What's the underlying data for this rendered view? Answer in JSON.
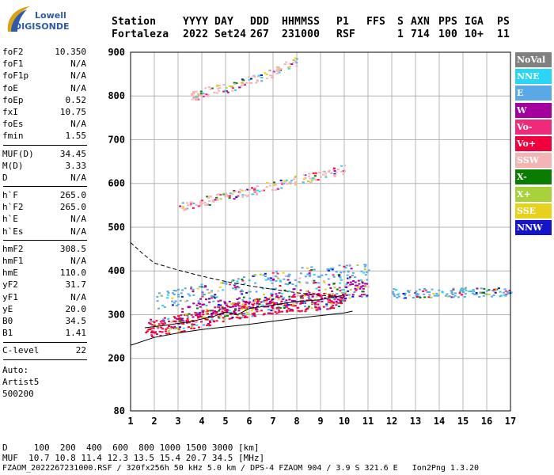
{
  "logo": {
    "line1": "Lowell",
    "line2": "DIGISONDE",
    "icon": "digisonde-swoosh-logo"
  },
  "header": {
    "labels": [
      "Station",
      "YYYY",
      "DAY",
      "DDD",
      "HHMMSS",
      "P1",
      "FFS",
      "S",
      "AXN",
      "PPS",
      "IGA",
      "PS"
    ],
    "values": [
      "Fortaleza",
      "2022",
      "Set24",
      "267",
      "231000",
      "RSF",
      "",
      "1",
      "714",
      "100",
      "10+",
      "11"
    ]
  },
  "params": {
    "group1": [
      {
        "label": "foF2",
        "value": "10.350"
      },
      {
        "label": "foF1",
        "value": "N/A"
      },
      {
        "label": "foF1p",
        "value": "N/A"
      },
      {
        "label": "foE",
        "value": "N/A"
      },
      {
        "label": "foEp",
        "value": "0.52"
      },
      {
        "label": "fxI",
        "value": "10.75"
      },
      {
        "label": "foEs",
        "value": "N/A"
      },
      {
        "label": "fmin",
        "value": "1.55"
      }
    ],
    "group2": [
      {
        "label": "MUF(D)",
        "value": "34.45"
      },
      {
        "label": "M(D)",
        "value": "3.33"
      },
      {
        "label": "D",
        "value": "N/A"
      }
    ],
    "group3": [
      {
        "label": "h`F",
        "value": "265.0"
      },
      {
        "label": "h`F2",
        "value": "265.0"
      },
      {
        "label": "h`E",
        "value": "N/A"
      },
      {
        "label": "h`Es",
        "value": "N/A"
      }
    ],
    "group4": [
      {
        "label": "hmF2",
        "value": "308.5"
      },
      {
        "label": "hmF1",
        "value": "N/A"
      },
      {
        "label": "hmE",
        "value": "110.0"
      },
      {
        "label": "yF2",
        "value": "31.7"
      },
      {
        "label": "yF1",
        "value": "N/A"
      },
      {
        "label": "yE",
        "value": "20.0"
      },
      {
        "label": "B0",
        "value": "34.5"
      },
      {
        "label": "B1",
        "value": "1.41"
      }
    ],
    "group5": [
      {
        "label": "C-level",
        "value": "22"
      }
    ]
  },
  "auto": {
    "line1": "Auto:",
    "line2": "Artist5",
    "line3": "500200"
  },
  "legend": [
    {
      "label": "NoVal",
      "bg": "#808080",
      "fg": "#ffffff"
    },
    {
      "label": "NNE",
      "bg": "#29d6f5",
      "fg": "#ffffff"
    },
    {
      "label": "E",
      "bg": "#5aa9e6",
      "fg": "#ffffff"
    },
    {
      "label": "W",
      "bg": "#a3009e",
      "fg": "#ffffff"
    },
    {
      "label": "Vo-",
      "bg": "#f02a7a",
      "fg": "#ffffff"
    },
    {
      "label": "Vo+",
      "bg": "#f0003c",
      "fg": "#ffffff"
    },
    {
      "label": "SSW",
      "bg": "#f5b4b4",
      "fg": "#ffffff"
    },
    {
      "label": "X-",
      "bg": "#0a7d00",
      "fg": "#ffffff"
    },
    {
      "label": "X+",
      "bg": "#a8d23c",
      "fg": "#ffffff"
    },
    {
      "label": "SSE",
      "bg": "#e6d21e",
      "fg": "#ffffff"
    },
    {
      "label": "NNW",
      "bg": "#1414c8",
      "fg": "#ffffff"
    }
  ],
  "footer": {
    "line1": "D     100  200  400  600  800 1000 1500 3000 [km]",
    "line2": "MUF  10.7 10.8 11.4 12.3 13.5 15.4 20.7 34.5 [MHz]",
    "line3": "FZAOM_2022267231000.RSF / 320fx256h 50 kHz 5.0 km / DPS-4 FZAOM 904 / 3.9 S 321.6 E   Ion2Png 1.3.20"
  },
  "chart_data": {
    "type": "scatter",
    "title": "",
    "xlabel": "",
    "ylabel": "",
    "xlim": [
      1,
      17
    ],
    "ylim": [
      80,
      900
    ],
    "x_ticks": [
      1,
      2,
      3,
      4,
      5,
      6,
      7,
      8,
      9,
      10,
      11,
      12,
      13,
      14,
      15,
      16,
      17
    ],
    "y_ticks": [
      80,
      200,
      300,
      400,
      500,
      600,
      700,
      800,
      900
    ],
    "grid": true,
    "legend_position": "right",
    "echo_traces": [
      {
        "name": "F-layer o-trace",
        "color": "#f0003c",
        "x": [
          1.6,
          2.0,
          2.5,
          3.0,
          3.5,
          4.0,
          4.5,
          5.0,
          5.5,
          6.0,
          6.5,
          7.0,
          7.5,
          8.0,
          8.5,
          9.0,
          9.5,
          10.0
        ],
        "y": [
          271,
          272,
          275,
          280,
          285,
          292,
          300,
          308,
          312,
          316,
          320,
          324,
          326,
          328,
          330,
          333,
          336,
          340
        ]
      },
      {
        "name": "F-layer x-trace",
        "color": "#a3009e",
        "x": [
          3.0,
          4.0,
          5.0,
          6.0,
          7.0,
          8.0,
          9.0,
          10.0,
          10.5,
          11.0
        ],
        "y": [
          300,
          310,
          318,
          326,
          334,
          342,
          350,
          356,
          360,
          362
        ]
      },
      {
        "name": "F-layer broad",
        "color": "#5aa9e6",
        "x": [
          2.0,
          3.0,
          4.0,
          5.0,
          6.0,
          7.0,
          8.0,
          9.0,
          10.0,
          11.0
        ],
        "y": [
          330,
          340,
          352,
          362,
          372,
          380,
          388,
          394,
          398,
          400
        ]
      },
      {
        "name": "multihop 2F",
        "color": "#f5b4b4",
        "x": [
          3.0,
          4.0,
          5.0,
          6.0,
          7.0,
          8.0,
          9.0,
          10.0
        ],
        "y": [
          545,
          560,
          572,
          584,
          596,
          608,
          620,
          634
        ]
      },
      {
        "name": "multihop 3F",
        "color": "#f5b4b4",
        "x": [
          3.5,
          4.0,
          5.0,
          6.0,
          7.0,
          8.0
        ],
        "y": [
          800,
          808,
          820,
          836,
          856,
          880
        ]
      },
      {
        "name": "spread F",
        "color": "#5aa9e6",
        "x": [
          12.0,
          13.0,
          14.0,
          15.0,
          16.0,
          17.0
        ],
        "y": [
          350,
          350,
          352,
          352,
          354,
          354
        ]
      }
    ],
    "profile_curves": [
      {
        "name": "lower profile",
        "color": "#000000",
        "x": [
          1.0,
          2.0,
          3.0,
          4.0,
          5.0,
          6.0,
          7.0,
          8.0,
          9.0,
          10.0,
          10.35
        ],
        "y": [
          230,
          248,
          258,
          266,
          272,
          278,
          285,
          292,
          298,
          304,
          308
        ]
      },
      {
        "name": "upper dashed profile",
        "color": "#000000",
        "x": [
          1.0,
          1.5,
          2.0,
          3.0,
          4.0,
          5.0,
          6.0,
          7.0,
          8.0,
          9.0,
          10.0
        ],
        "y": [
          465,
          440,
          418,
          402,
          388,
          376,
          366,
          358,
          350,
          344,
          340
        ]
      },
      {
        "name": "ordinary trace fit",
        "color": "#000000",
        "x": [
          1.6,
          2.5,
          3.5,
          4.5,
          5.0,
          5.5,
          6.0,
          7.0,
          8.0,
          9.0,
          10.0
        ],
        "y": [
          270,
          276,
          284,
          296,
          306,
          300,
          314,
          322,
          330,
          334,
          345
        ]
      }
    ]
  }
}
